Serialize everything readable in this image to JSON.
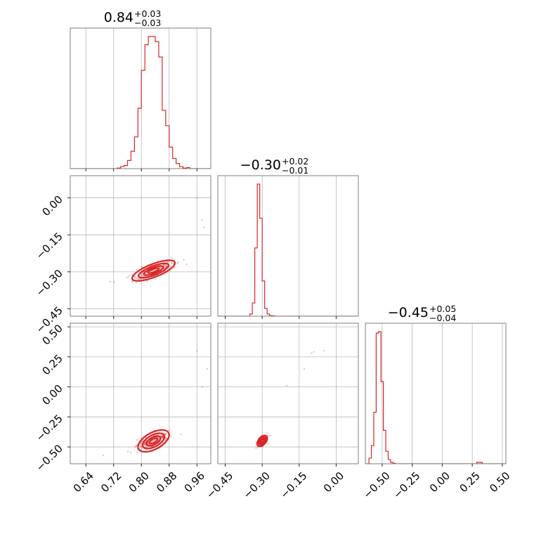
{
  "chart_data": {
    "type": "corner",
    "colors": {
      "series": "#d62728",
      "grid": "#b8b8b8",
      "frame": "#7f7f7f"
    },
    "grid": true,
    "params": [
      {
        "title_value": "0.84",
        "title_upper": "+0.03",
        "title_lower": "−0.03",
        "range": [
          0.595,
          1.0
        ]
      },
      {
        "title_value": "−0.30",
        "title_upper": "+0.02",
        "title_lower": "−0.01",
        "range": [
          -0.48,
          0.09
        ]
      },
      {
        "title_value": "−0.45",
        "title_upper": "+0.05",
        "title_lower": "−0.04",
        "range": [
          -0.64,
          0.53
        ]
      }
    ],
    "ticks": [
      {
        "values": [
          0.64,
          0.72,
          0.8,
          0.88,
          0.96
        ],
        "labels": [
          "0.64",
          "0.72",
          "0.80",
          "0.88",
          "0.96"
        ]
      },
      {
        "values": [
          -0.45,
          -0.3,
          -0.15,
          0.0
        ],
        "labels": [
          "−0.45",
          "−0.30",
          "−0.15",
          "0.00"
        ]
      },
      {
        "values": [
          -0.5,
          -0.25,
          0.0,
          0.25,
          0.5
        ],
        "labels": [
          "−0.50",
          "−0.25",
          "0.00",
          "0.25",
          "0.50"
        ]
      }
    ],
    "histograms": [
      {
        "param": 0,
        "bin_start": 0.7,
        "bin_width": 0.01,
        "counts": [
          0,
          0,
          0,
          0.005,
          0.02,
          0.03,
          0.08,
          0.17,
          0.31,
          0.59,
          0.96,
          1.21,
          1.29,
          1.29,
          1.24,
          1.09,
          0.57,
          0.42,
          0.21,
          0.1,
          0.05,
          0.02,
          0.005,
          0.01,
          0
        ]
      },
      {
        "param": 1,
        "bin_start": -0.36,
        "bin_width": 0.01,
        "counts": [
          0,
          0.02,
          0.12,
          0.62,
          1.2,
          0.89,
          0.32,
          0.07,
          0.02,
          0.005,
          0.003,
          0
        ]
      },
      {
        "param": 2,
        "bin_start": -0.63,
        "bin_width": 0.02,
        "counts": [
          0,
          0.04,
          0.13,
          0.37,
          0.94,
          0.95,
          0.59,
          0.24,
          0.09,
          0.03,
          0.01,
          0.003,
          0
        ],
        "tail": {
          "x": 0.31,
          "count": 0.008
        }
      }
    ],
    "correlations": [
      {
        "x_param": 0,
        "y_param": 1,
        "center": [
          0.835,
          -0.295
        ],
        "slope": 0.55,
        "spread_along": 0.035,
        "spread_across": 0.012,
        "points": 240,
        "outliers": [
          [
            0.71,
            -0.34
          ],
          [
            0.96,
            0.0
          ],
          [
            0.975,
            -0.09
          ],
          [
            0.98,
            -0.12
          ]
        ]
      },
      {
        "x_param": 0,
        "y_param": 2,
        "center": [
          0.835,
          -0.45
        ],
        "slope": 1.55,
        "spread_along": 0.04,
        "spread_across": 0.014,
        "points": 240,
        "outliers": [
          [
            0.69,
            -0.57
          ],
          [
            0.96,
            0.3
          ],
          [
            0.975,
            0.0
          ],
          [
            0.99,
            0.15
          ]
        ]
      },
      {
        "x_param": 1,
        "y_param": 2,
        "center": [
          -0.3,
          -0.45
        ],
        "slope": 2.6,
        "spread_along": 0.022,
        "spread_across": 0.008,
        "points": 220,
        "outliers": [
          [
            -0.09,
            0.29
          ],
          [
            -0.1,
            0.28
          ],
          [
            -0.13,
            0.15
          ],
          [
            -0.05,
            0.3
          ],
          [
            -0.2,
            0.01
          ]
        ]
      }
    ]
  }
}
